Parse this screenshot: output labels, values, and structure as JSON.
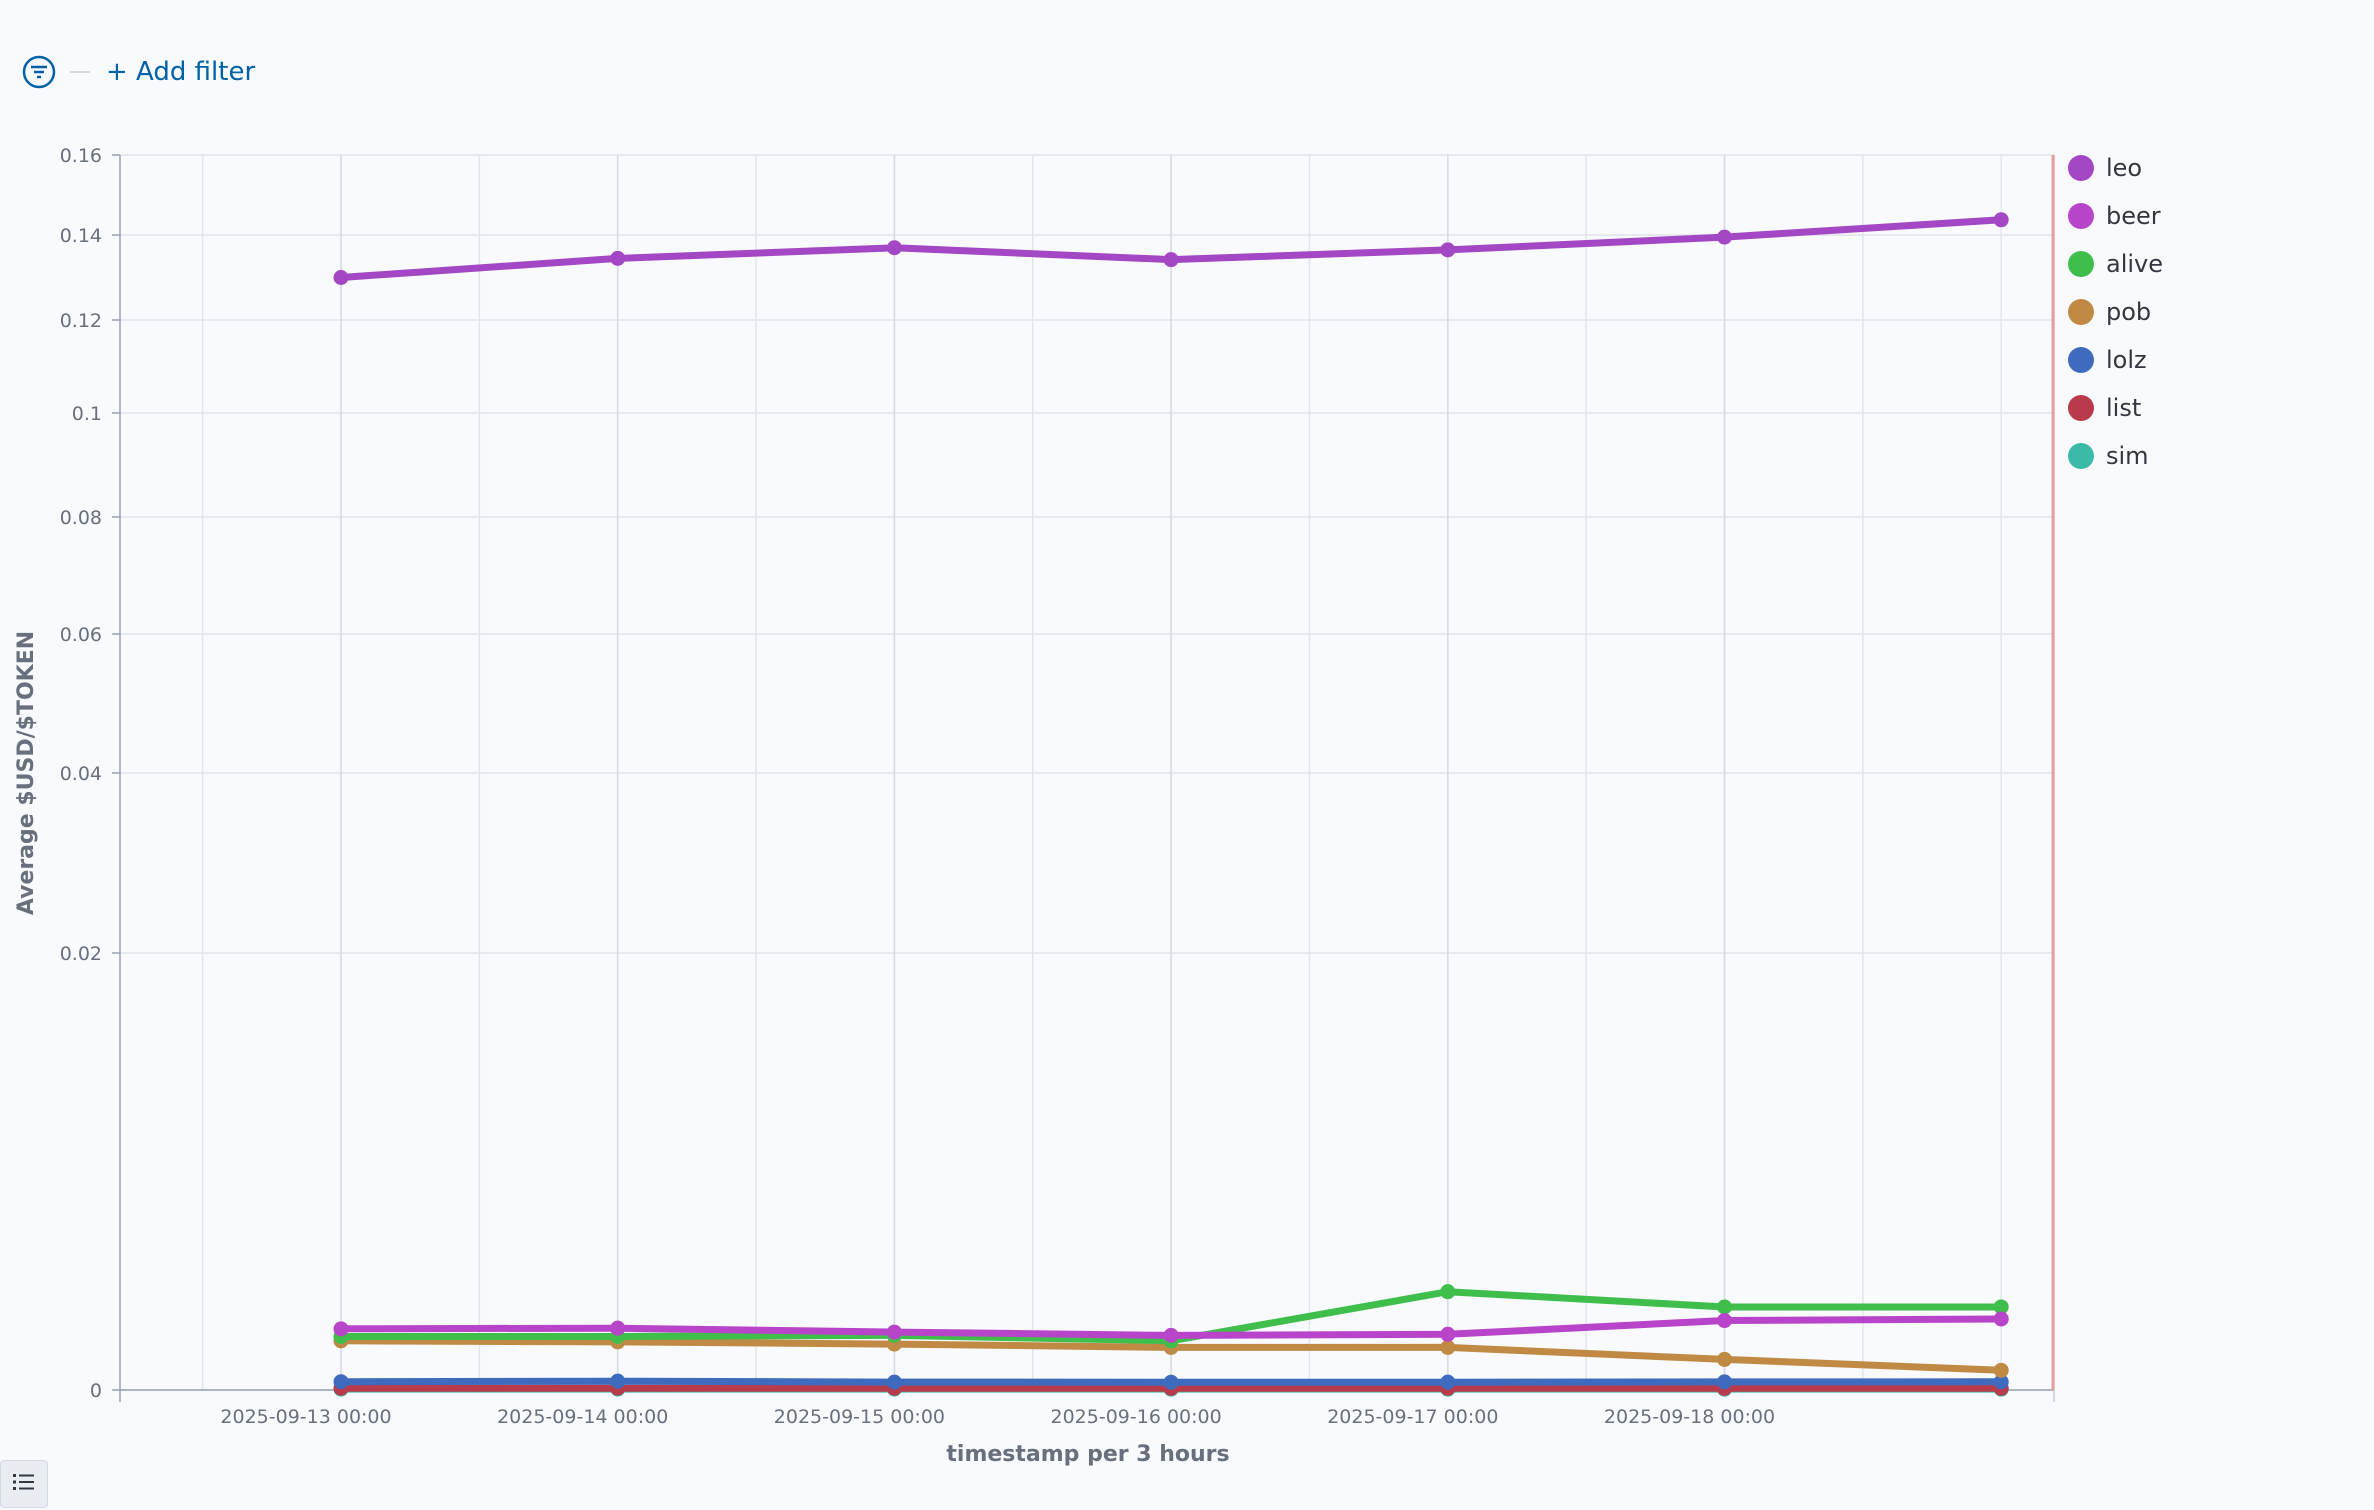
{
  "filter_bar": {
    "add_filter_label": "+ Add filter",
    "icon": "filter-icon"
  },
  "bottom_toggle": {
    "icon": "list-icon"
  },
  "chart_data": {
    "type": "line",
    "xlabel": "timestamp per 3 hours",
    "ylabel": "Average $USD/$TOKEN",
    "x_ticks": [
      "2025-09-13 00:00",
      "2025-09-14 00:00",
      "2025-09-15 00:00",
      "2025-09-16 00:00",
      "2025-09-17 00:00",
      "2025-09-18 00:00"
    ],
    "y_ticks": [
      {
        "value": 0,
        "label": "0"
      },
      {
        "value": 0.02,
        "label": "0.02"
      },
      {
        "value": 0.04,
        "label": "0.04"
      },
      {
        "value": 0.06,
        "label": "0.06"
      },
      {
        "value": 0.08,
        "label": "0.08"
      },
      {
        "value": 0.1,
        "label": "0.1"
      },
      {
        "value": 0.12,
        "label": "0.12"
      },
      {
        "value": 0.14,
        "label": "0.14"
      },
      {
        "value": 0.16,
        "label": "0.16"
      }
    ],
    "ylim": [
      0,
      0.16
    ],
    "x": [
      "2025-09-13 00:00",
      "2025-09-14 00:00",
      "2025-09-15 00:00",
      "2025-09-16 00:00",
      "2025-09-17 00:00",
      "2025-09-18 00:00",
      "2025-09-19 00:00"
    ],
    "legend_position": "right",
    "grid": true,
    "series": [
      {
        "name": "leo",
        "color": "#a347c4",
        "values": [
          0.13,
          0.1345,
          0.137,
          0.1342,
          0.1365,
          0.1395,
          0.1438
        ]
      },
      {
        "name": "beer",
        "color": "#b844c9",
        "values": [
          0.0028,
          0.00283,
          0.00265,
          0.0025,
          0.00255,
          0.00318,
          0.00325
        ]
      },
      {
        "name": "alive",
        "color": "#3fbe4b",
        "values": [
          0.00245,
          0.00245,
          0.0025,
          0.00225,
          0.0045,
          0.0038,
          0.0038
        ]
      },
      {
        "name": "pob",
        "color": "#c08a44",
        "values": [
          0.00225,
          0.0022,
          0.0021,
          0.00195,
          0.00195,
          0.0014,
          0.0009
        ]
      },
      {
        "name": "lolz",
        "color": "#3f6bbf",
        "values": [
          0.00038,
          0.000405,
          0.00036,
          0.000355,
          0.000358,
          0.00037,
          0.000373
        ]
      },
      {
        "name": "list",
        "color": "#b83a4b",
        "values": [
          8e-05,
          8.2e-05,
          8e-05,
          7.9e-05,
          7.8e-05,
          7.8e-05,
          7.8e-05
        ]
      },
      {
        "name": "sim",
        "color": "#3cbaa8",
        "values": [
          4e-05,
          4.1e-05,
          4e-05,
          3.9e-05,
          3.9e-05,
          3.9e-05,
          3.9e-05
        ]
      }
    ]
  }
}
